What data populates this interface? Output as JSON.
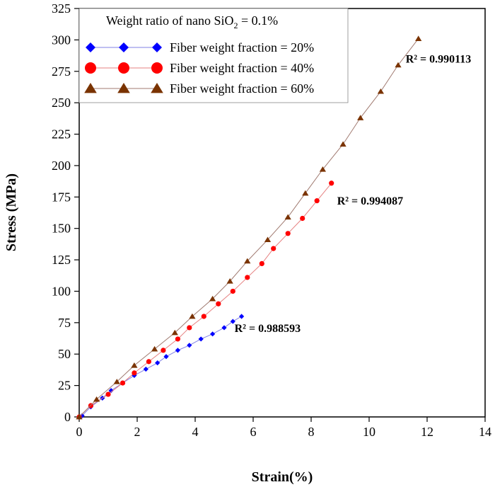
{
  "chart_data": {
    "type": "line",
    "xlabel": "Strain(%)",
    "ylabel": "Stress (MPa)",
    "xlim": [
      0,
      14
    ],
    "ylim": [
      0,
      325
    ],
    "xticks": [
      0,
      2,
      4,
      6,
      8,
      10,
      12,
      14
    ],
    "yticks": [
      0,
      25,
      50,
      75,
      100,
      125,
      150,
      175,
      200,
      225,
      250,
      275,
      300,
      325
    ],
    "legend": {
      "title_prefix": "Weight ratio of nano SiO",
      "title_sub": "2",
      "title_suffix": "  = 0.1%",
      "placement": "top-left"
    },
    "series": [
      {
        "name": "Fiber weight fraction = 20%",
        "marker": "diamond",
        "color": "#0000ff",
        "line_color": "#8080e6",
        "r2_label": "R² = 0.988593",
        "r2_value": 0.988593,
        "x": [
          0.0,
          0.1,
          0.4,
          0.8,
          1.1,
          1.5,
          1.9,
          2.3,
          2.7,
          3.0,
          3.4,
          3.8,
          4.2,
          4.6,
          5.0,
          5.3,
          5.6
        ],
        "y": [
          0,
          1,
          8,
          15,
          21,
          27,
          33,
          38,
          43,
          48,
          53,
          57,
          62,
          66,
          71,
          76,
          80
        ]
      },
      {
        "name": "Fiber weight fraction = 40%",
        "marker": "circle",
        "color": "#ff0000",
        "line_color": "#e68080",
        "r2_label": "R² = 0.994087",
        "r2_value": 0.994087,
        "x": [
          0.0,
          0.4,
          1.0,
          1.5,
          1.9,
          2.4,
          2.9,
          3.4,
          3.8,
          4.3,
          4.8,
          5.3,
          5.8,
          6.3,
          6.7,
          7.2,
          7.7,
          8.2,
          8.7
        ],
        "y": [
          0,
          9,
          18,
          27,
          35,
          44,
          53,
          62,
          71,
          80,
          90,
          100,
          111,
          122,
          134,
          146,
          158,
          172,
          186
        ]
      },
      {
        "name": "Fiber weight fraction = 60%",
        "marker": "triangle",
        "color": "#7a3300",
        "line_color": "#a07a70",
        "r2_label": "R² = 0.990113",
        "r2_value": 0.990113,
        "x": [
          0.0,
          0.6,
          1.3,
          1.9,
          2.6,
          3.3,
          3.9,
          4.6,
          5.2,
          5.8,
          6.5,
          7.2,
          7.8,
          8.4,
          9.1,
          9.7,
          10.4,
          11.0,
          11.7
        ],
        "y": [
          0,
          14,
          28,
          41,
          54,
          67,
          80,
          94,
          108,
          124,
          141,
          159,
          178,
          197,
          217,
          238,
          259,
          280,
          301
        ]
      }
    ]
  }
}
